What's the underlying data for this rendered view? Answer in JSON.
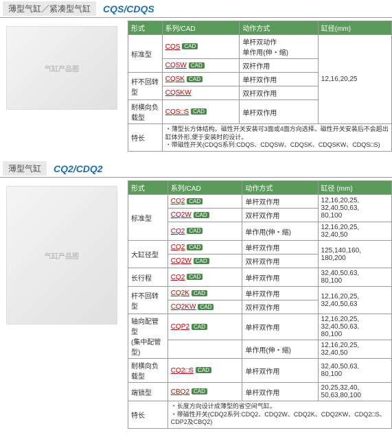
{
  "sections": [
    {
      "title_cn": "薄型气缸／紧凑型气缸",
      "title_en": "CQS/CDQS",
      "img_label": "气缸产品图",
      "headers": [
        "形式",
        "系列/CAD",
        "动作方式",
        "缸径(mm)"
      ],
      "rows": [
        {
          "form": "标准型",
          "form_rowspan": 2,
          "series": "CQS",
          "cad": true,
          "action": "单杆双动作\n单作用(伸・缩)",
          "bore": "12,16,20,25",
          "bore_rowspan": 5
        },
        {
          "series": "CQSW",
          "cad": true,
          "action": "双杆作用"
        },
        {
          "form": "杆不回转型",
          "form_rowspan": 2,
          "series": "CQSK",
          "cad": true,
          "action": "单杆双作用"
        },
        {
          "series": "CQSKW",
          "cad": false,
          "action": "双杆双作用"
        },
        {
          "form": "耐横向负载型",
          "series": "CQS□S",
          "cad": true,
          "action": "单杆双作用"
        }
      ],
      "feature_label": "特长",
      "feature_text": "・薄型长方体结构。磁性开关安装可3面或4面方向选择。磁性开关安装后不会超出缸体外形,便于安装时的设计。\n・带磁性开关(CDQS系列:CDQS、CDQSW、CDQSK、CDQSKW、CDQS□S)"
    },
    {
      "title_cn": "薄型气缸",
      "title_en": "CQ2/CDQ2",
      "img_label": "气缸产品图",
      "headers": [
        "形式",
        "系列/CAD",
        "动作方式",
        "缸径 (mm)"
      ],
      "rows": [
        {
          "form": "标准型",
          "form_rowspan": 3,
          "series": "CQ2",
          "cad": true,
          "action": "单杆双作用",
          "bore": "12,16,20,25,\n32,40,50,63,\n80,100"
        },
        {
          "series": "CQ2W",
          "cad": true,
          "action": "双杆双作用",
          "bore": ""
        },
        {
          "series": "CQ2",
          "cad": true,
          "action": "单作用(伸・缩)",
          "bore": "12,16,20,25,\n32,40,50"
        },
        {
          "form": "大缸径型",
          "form_rowspan": 2,
          "series": "CQ2",
          "cad": true,
          "action": "单杆双作用",
          "bore": "125,140,160,\n180,200"
        },
        {
          "series": "CQ2W",
          "cad": true,
          "action": "双杆双作用",
          "bore": ""
        },
        {
          "form": "长行程",
          "series": "CQ2",
          "cad": true,
          "action": "单杆双作用",
          "bore": "32,40,50,63,\n80,100"
        },
        {
          "form": "杆不回转型",
          "form_rowspan": 2,
          "series": "CQ2K",
          "cad": true,
          "action": "单杆双作用",
          "bore": "12,16,20,25,\n32,40,50,63"
        },
        {
          "series": "CQ2KW",
          "cad": true,
          "action": "双杆双作用",
          "bore": ""
        },
        {
          "form": "轴向配管型\n(集中配管型)",
          "form_rowspan": 2,
          "series": "CQP2",
          "cad": true,
          "action": "单杆双作用",
          "bore": "12,16,20,25,\n32,40,50,63,\n80,100"
        },
        {
          "series": "",
          "cad": false,
          "action": "单作用(伸・缩)",
          "bore": "12,16,20,25,\n32,40,50"
        },
        {
          "form": "耐横向负载型",
          "series": "CQ2□S",
          "cad": true,
          "action": "单杆双作用",
          "bore": "32,40,50,63,\n80,100"
        },
        {
          "form": "端锁型",
          "series": "CBQ2",
          "cad": true,
          "action": "单杆双作用",
          "bore": "20,25,32,40,\n50,63,80,100"
        }
      ],
      "feature_label": "特长",
      "feature_text": "・长度方向设计成薄型的省空间气缸。\n・带磁性开关(CDQ2系列:CDQ2、CDQ2W、CDQ2K、CDQ2KW、CDQ2□S、CDP2及CBQ2)"
    }
  ],
  "colors": {
    "header_bg": "#5a9a5a",
    "link": "#c00",
    "title": "#1a6bb8"
  }
}
